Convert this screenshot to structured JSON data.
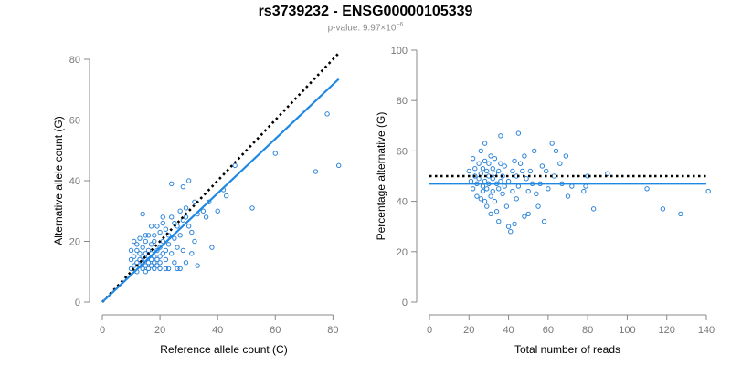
{
  "title": "rs3739232 - ENSG00000105339",
  "subtitle": {
    "prefix": "p-value: 9.97×10",
    "exponent": "−6"
  },
  "colors": {
    "points": "#2b83d8",
    "fit_line": "#1e88e5",
    "reference_line": "#000000",
    "axis": "#888888"
  },
  "chart_data": [
    {
      "type": "scatter",
      "xlabel": "Reference allele count (C)",
      "ylabel": "Alternative allele count (G)",
      "xlim": [
        0,
        84
      ],
      "ylim": [
        0,
        80
      ],
      "xticks": [
        0,
        20,
        40,
        60,
        80
      ],
      "yticks": [
        0,
        20,
        40,
        60,
        80
      ],
      "grid": false,
      "reference_line": {
        "style": "dotted",
        "from": [
          0,
          0
        ],
        "to": [
          82,
          82
        ]
      },
      "fit_line": {
        "from": [
          0,
          0
        ],
        "to": [
          82,
          73.5
        ]
      },
      "points": [
        [
          10,
          11
        ],
        [
          10,
          14
        ],
        [
          11,
          12
        ],
        [
          11,
          15
        ],
        [
          12,
          13
        ],
        [
          12,
          17
        ],
        [
          12,
          10
        ],
        [
          13,
          14
        ],
        [
          13,
          16
        ],
        [
          13,
          12
        ],
        [
          14,
          11
        ],
        [
          14,
          15
        ],
        [
          14,
          18
        ],
        [
          14,
          13
        ],
        [
          15,
          12
        ],
        [
          15,
          16
        ],
        [
          15,
          20
        ],
        [
          15,
          14
        ],
        [
          15,
          10
        ],
        [
          16,
          13
        ],
        [
          16,
          17
        ],
        [
          16,
          15
        ],
        [
          16,
          11
        ],
        [
          17,
          14
        ],
        [
          17,
          19
        ],
        [
          17,
          12
        ],
        [
          17,
          16
        ],
        [
          18,
          13
        ],
        [
          18,
          15
        ],
        [
          18,
          11
        ],
        [
          18,
          22
        ],
        [
          19,
          14
        ],
        [
          19,
          17
        ],
        [
          19,
          12
        ],
        [
          20,
          15
        ],
        [
          20,
          18
        ],
        [
          20,
          13
        ],
        [
          20,
          11
        ],
        [
          21,
          16
        ],
        [
          21,
          20
        ],
        [
          21,
          26
        ],
        [
          22,
          14
        ],
        [
          22,
          17
        ],
        [
          22,
          24
        ],
        [
          23,
          19
        ],
        [
          23,
          22
        ],
        [
          24,
          16
        ],
        [
          24,
          28
        ],
        [
          25,
          21
        ],
        [
          25,
          13
        ],
        [
          26,
          25
        ],
        [
          26,
          18
        ],
        [
          27,
          30
        ],
        [
          27,
          22
        ],
        [
          27,
          11
        ],
        [
          28,
          27
        ],
        [
          28,
          17
        ],
        [
          29,
          31
        ],
        [
          29,
          13
        ],
        [
          30,
          25
        ],
        [
          30,
          40
        ],
        [
          31,
          23
        ],
        [
          31,
          16
        ],
        [
          32,
          33
        ],
        [
          32,
          20
        ],
        [
          33,
          29
        ],
        [
          35,
          30
        ],
        [
          36,
          28
        ],
        [
          37,
          33
        ],
        [
          38,
          18
        ],
        [
          40,
          30
        ],
        [
          42,
          37
        ],
        [
          43,
          35
        ],
        [
          46,
          45
        ],
        [
          52,
          31
        ],
        [
          60,
          49
        ],
        [
          74,
          43
        ],
        [
          78,
          62
        ],
        [
          82,
          45
        ],
        [
          10,
          17
        ],
        [
          12,
          19
        ],
        [
          16,
          22
        ],
        [
          19,
          25
        ],
        [
          23,
          11
        ],
        [
          24,
          39
        ],
        [
          25,
          26
        ],
        [
          28,
          38
        ],
        [
          29,
          28
        ],
        [
          33,
          12
        ],
        [
          14,
          29
        ],
        [
          13,
          21
        ],
        [
          18,
          20
        ],
        [
          20,
          23
        ],
        [
          22,
          11
        ],
        [
          26,
          11
        ],
        [
          11,
          20
        ],
        [
          15,
          22
        ],
        [
          17,
          25
        ],
        [
          21,
          28
        ]
      ]
    },
    {
      "type": "scatter",
      "xlabel": "Total number of reads",
      "ylabel": "Percentage alternative (G)",
      "xlim": [
        0,
        140
      ],
      "ylim": [
        0,
        100
      ],
      "xticks": [
        0,
        20,
        40,
        60,
        80,
        100,
        120,
        140
      ],
      "yticks": [
        0,
        20,
        40,
        60,
        80,
        100
      ],
      "grid": false,
      "reference_line": {
        "style": "dotted",
        "y": 50
      },
      "fit_line": {
        "y": 47
      },
      "points": [
        [
          20,
          52
        ],
        [
          21,
          48
        ],
        [
          22,
          45
        ],
        [
          22,
          57
        ],
        [
          23,
          50
        ],
        [
          23,
          53
        ],
        [
          24,
          42
        ],
        [
          24,
          47
        ],
        [
          25,
          55
        ],
        [
          25,
          49
        ],
        [
          26,
          41
        ],
        [
          26,
          51
        ],
        [
          26,
          60
        ],
        [
          27,
          46
        ],
        [
          27,
          53
        ],
        [
          27,
          44
        ],
        [
          28,
          48
        ],
        [
          28,
          56
        ],
        [
          28,
          63
        ],
        [
          28,
          40
        ],
        [
          29,
          52
        ],
        [
          29,
          45
        ],
        [
          29,
          38
        ],
        [
          30,
          50
        ],
        [
          30,
          55
        ],
        [
          30,
          47
        ],
        [
          31,
          42
        ],
        [
          31,
          58
        ],
        [
          31,
          35
        ],
        [
          32,
          49
        ],
        [
          32,
          53
        ],
        [
          32,
          44
        ],
        [
          33,
          51
        ],
        [
          33,
          40
        ],
        [
          33,
          57
        ],
        [
          34,
          47
        ],
        [
          34,
          36
        ],
        [
          35,
          52
        ],
        [
          35,
          45
        ],
        [
          35,
          32
        ],
        [
          36,
          55
        ],
        [
          36,
          48
        ],
        [
          36,
          66
        ],
        [
          37,
          43
        ],
        [
          37,
          50
        ],
        [
          38,
          46
        ],
        [
          38,
          54
        ],
        [
          39,
          38
        ],
        [
          40,
          30
        ],
        [
          40,
          48
        ],
        [
          41,
          28
        ],
        [
          42,
          44
        ],
        [
          42,
          52
        ],
        [
          43,
          56
        ],
        [
          43,
          31
        ],
        [
          44,
          50
        ],
        [
          44,
          41
        ],
        [
          45,
          67
        ],
        [
          45,
          46
        ],
        [
          46,
          55
        ],
        [
          47,
          52
        ],
        [
          48,
          58
        ],
        [
          48,
          34
        ],
        [
          49,
          49
        ],
        [
          50,
          35
        ],
        [
          50,
          44
        ],
        [
          51,
          52
        ],
        [
          52,
          47
        ],
        [
          53,
          60
        ],
        [
          54,
          43
        ],
        [
          55,
          38
        ],
        [
          56,
          47
        ],
        [
          57,
          54
        ],
        [
          58,
          32
        ],
        [
          59,
          52
        ],
        [
          60,
          45
        ],
        [
          62,
          63
        ],
        [
          63,
          50
        ],
        [
          64,
          60
        ],
        [
          66,
          55
        ],
        [
          67,
          47
        ],
        [
          69,
          58
        ],
        [
          70,
          42
        ],
        [
          72,
          46
        ],
        [
          78,
          44
        ],
        [
          79,
          46
        ],
        [
          80,
          50
        ],
        [
          83,
          37
        ],
        [
          90,
          51
        ],
        [
          110,
          45
        ],
        [
          118,
          37
        ],
        [
          127,
          35
        ],
        [
          141,
          44
        ]
      ]
    }
  ]
}
